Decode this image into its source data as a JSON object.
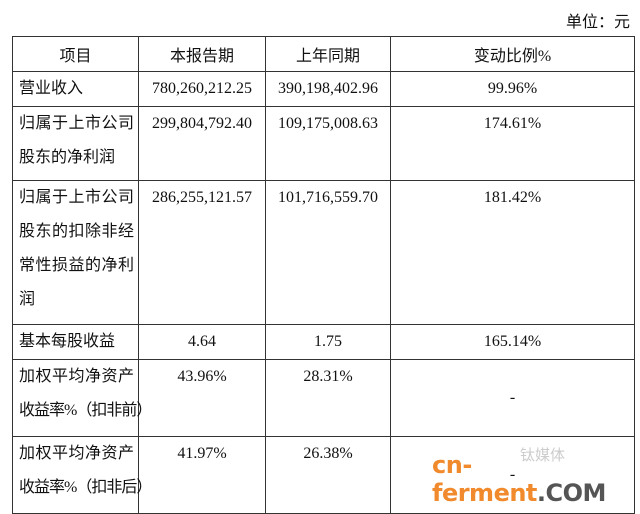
{
  "unit_label": "单位：元",
  "table": {
    "headers": [
      "项目",
      "本报告期",
      "上年同期",
      "变动比例%"
    ],
    "rows": [
      {
        "item": [
          "营业收入"
        ],
        "current": "780,260,212.25",
        "previous": "390,198,402.96",
        "change": "99.96%"
      },
      {
        "item": [
          "归属于上市公司",
          "股东的净利润"
        ],
        "current": "299,804,792.40",
        "previous": "109,175,008.63",
        "change": "174.61%"
      },
      {
        "item": [
          "归属于上市公司",
          "股东的扣除非经",
          "常性损益的净利",
          "润"
        ],
        "current": "286,255,121.57",
        "previous": "101,716,559.70",
        "change": "181.42%"
      },
      {
        "item": [
          "基本每股收益"
        ],
        "current": "4.64",
        "previous": "1.75",
        "change": "165.14%"
      },
      {
        "item": [
          "加权平均净资产",
          "收益率%（扣非前）"
        ],
        "current": "43.96%",
        "previous": "28.31%",
        "change": "-"
      },
      {
        "item": [
          "加权平均净资产",
          "收益率%（扣非后）"
        ],
        "current": "41.97%",
        "previous": "26.38%",
        "change": "-"
      }
    ]
  },
  "watermark": {
    "brand_main": "cn-ferment",
    "brand_suffix": ".COM",
    "secondary": "钛媒体",
    "brand_color": "#f08a2c"
  }
}
